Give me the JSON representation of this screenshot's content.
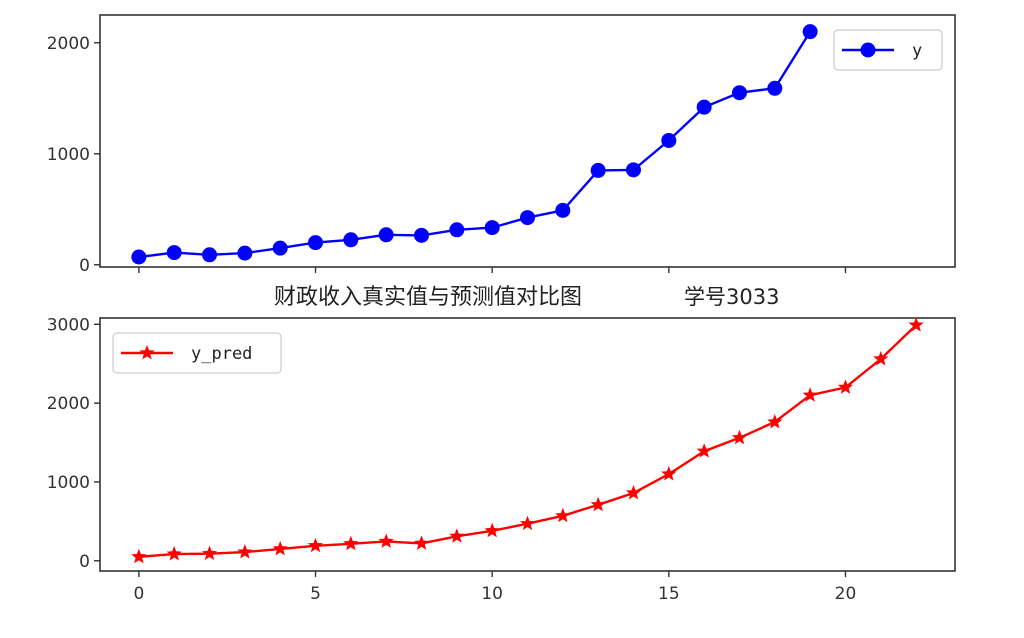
{
  "chart_data": [
    {
      "type": "line",
      "x": [
        0,
        1,
        2,
        3,
        4,
        5,
        6,
        7,
        8,
        9,
        10,
        11,
        12,
        13,
        14,
        15,
        16,
        17,
        18,
        19
      ],
      "series": [
        {
          "name": "y",
          "color": "#0000ff",
          "marker": "circle",
          "values": [
            70,
            110,
            90,
            105,
            150,
            200,
            225,
            270,
            265,
            315,
            335,
            425,
            490,
            850,
            855,
            1120,
            1420,
            1550,
            1590,
            2100
          ]
        }
      ],
      "ylim": [
        -20,
        2250
      ],
      "yticks": [
        0,
        1000,
        2000
      ],
      "xticks": [
        0,
        5,
        10,
        15,
        20
      ],
      "x_ticklabels_visible": false,
      "legend": "top-right",
      "grid": false
    },
    {
      "type": "line",
      "x": [
        0,
        1,
        2,
        3,
        4,
        5,
        6,
        7,
        8,
        9,
        10,
        11,
        12,
        13,
        14,
        15,
        16,
        17,
        18,
        19,
        20,
        21,
        22
      ],
      "series": [
        {
          "name": "y_pred",
          "color": "#ff0000",
          "marker": "star",
          "values": [
            50,
            85,
            90,
            110,
            150,
            190,
            215,
            245,
            220,
            310,
            380,
            470,
            570,
            710,
            860,
            1100,
            1390,
            1560,
            1760,
            2100,
            2200,
            2560,
            2990
          ]
        }
      ],
      "ylim": [
        -130,
        3080
      ],
      "yticks": [
        0,
        1000,
        2000,
        3000
      ],
      "xticks": [
        0,
        5,
        10,
        15,
        20
      ],
      "xlim": [
        -1.1,
        23.1
      ],
      "legend": "top-left",
      "grid": false
    }
  ],
  "title": "财政收入真实值与预测值对比图",
  "student_id": "学号3033"
}
